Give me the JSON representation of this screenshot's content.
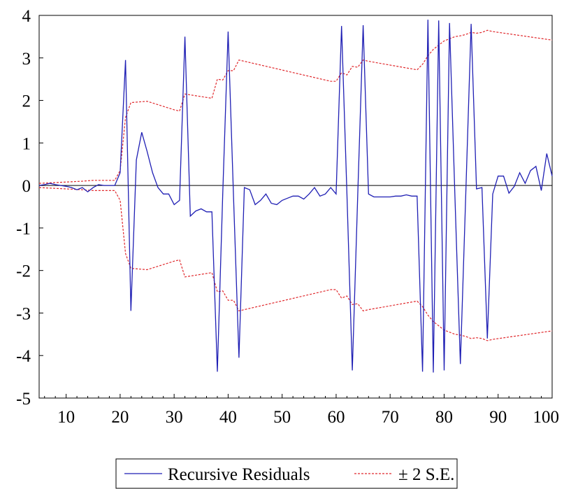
{
  "chart_data": {
    "type": "line",
    "title": "",
    "xlabel": "",
    "ylabel": "",
    "xlim": [
      5,
      100
    ],
    "ylim": [
      -5,
      4
    ],
    "x_ticks": [
      10,
      20,
      30,
      40,
      50,
      60,
      70,
      80,
      90,
      100
    ],
    "y_ticks": [
      4,
      3,
      2,
      1,
      0,
      -1,
      -2,
      -3,
      -4,
      -5
    ],
    "grid": false,
    "zero_line": true,
    "legend_position": "bottom-center",
    "series": [
      {
        "name": "Recursive Residuals",
        "color": "#1f1fb4",
        "style": "solid",
        "x": [
          5,
          6,
          7,
          8,
          9,
          10,
          11,
          12,
          13,
          14,
          15,
          16,
          17,
          18,
          19,
          20,
          21,
          22,
          23,
          24,
          25,
          26,
          27,
          28,
          29,
          30,
          31,
          32,
          33,
          34,
          35,
          36,
          37,
          38,
          39,
          40,
          41,
          42,
          43,
          44,
          45,
          46,
          47,
          48,
          49,
          50,
          51,
          52,
          53,
          54,
          55,
          56,
          57,
          58,
          59,
          60,
          61,
          62,
          63,
          64,
          65,
          66,
          67,
          68,
          69,
          70,
          71,
          72,
          73,
          74,
          75,
          76,
          77,
          78,
          79,
          80,
          81,
          82,
          83,
          84,
          85,
          86,
          87,
          88,
          89,
          90,
          91,
          92,
          93,
          94,
          95,
          96,
          97,
          98,
          99,
          100
        ],
        "y": [
          0.0,
          0.02,
          0.05,
          0.02,
          0.0,
          -0.02,
          -0.05,
          -0.1,
          -0.05,
          -0.15,
          -0.05,
          0.02,
          0.0,
          0.0,
          0.0,
          0.3,
          2.95,
          -2.95,
          0.6,
          1.25,
          0.8,
          0.3,
          -0.05,
          -0.2,
          -0.2,
          -0.45,
          -0.35,
          3.5,
          -0.72,
          -0.6,
          -0.55,
          -0.62,
          -0.62,
          -4.38,
          -0.2,
          3.62,
          -0.25,
          -4.05,
          -0.05,
          -0.1,
          -0.45,
          -0.35,
          -0.2,
          -0.42,
          -0.45,
          -0.35,
          -0.3,
          -0.25,
          -0.25,
          -0.32,
          -0.2,
          -0.05,
          -0.25,
          -0.2,
          -0.05,
          -0.2,
          3.75,
          -0.2,
          -4.35,
          -0.2,
          3.77,
          -0.2,
          -0.27,
          -0.27,
          -0.27,
          -0.27,
          -0.25,
          -0.25,
          -0.22,
          -0.25,
          -0.25,
          -4.38,
          3.9,
          -4.4,
          3.88,
          -4.35,
          3.82,
          -0.25,
          -4.2,
          -0.22,
          3.8,
          -0.08,
          -0.05,
          -3.6,
          -0.2,
          0.22,
          0.22,
          -0.18,
          -0.02,
          0.3,
          0.05,
          0.35,
          0.45,
          -0.12,
          0.75,
          0.22
        ]
      },
      {
        "name": "± 2 S.E.",
        "color": "#e0282c",
        "style": "dashed",
        "x": [
          5,
          10,
          13,
          15,
          18,
          19,
          20,
          21,
          22,
          25,
          30,
          31,
          32,
          37,
          38,
          39,
          40,
          41,
          42,
          59,
          60,
          61,
          62,
          63,
          64,
          65,
          66,
          75,
          76,
          77,
          78,
          79,
          80,
          81,
          82,
          83,
          84,
          85,
          86,
          87,
          88,
          89,
          100
        ],
        "y_upper": [
          0.05,
          0.08,
          0.1,
          0.12,
          0.12,
          0.12,
          0.35,
          1.6,
          1.95,
          1.98,
          1.78,
          1.75,
          2.15,
          2.05,
          2.5,
          2.48,
          2.7,
          2.7,
          2.95,
          2.45,
          2.45,
          2.65,
          2.6,
          2.8,
          2.78,
          2.95,
          2.92,
          2.72,
          2.85,
          3.05,
          3.2,
          3.3,
          3.4,
          3.45,
          3.5,
          3.52,
          3.55,
          3.6,
          3.58,
          3.6,
          3.65,
          3.62,
          3.42
        ],
        "y_lower": [
          -0.05,
          -0.08,
          -0.1,
          -0.12,
          -0.12,
          -0.12,
          -0.35,
          -1.6,
          -1.95,
          -1.98,
          -1.78,
          -1.75,
          -2.15,
          -2.05,
          -2.5,
          -2.48,
          -2.7,
          -2.7,
          -2.95,
          -2.45,
          -2.45,
          -2.65,
          -2.6,
          -2.8,
          -2.78,
          -2.95,
          -2.92,
          -2.72,
          -2.85,
          -3.05,
          -3.2,
          -3.3,
          -3.4,
          -3.45,
          -3.5,
          -3.52,
          -3.55,
          -3.6,
          -3.58,
          -3.6,
          -3.65,
          -3.62,
          -3.42
        ]
      }
    ],
    "legend": [
      {
        "label": "Recursive Residuals",
        "color": "#1f1fb4",
        "style": "solid"
      },
      {
        "label": "± 2 S.E.",
        "color": "#e0282c",
        "style": "dashed"
      }
    ]
  }
}
